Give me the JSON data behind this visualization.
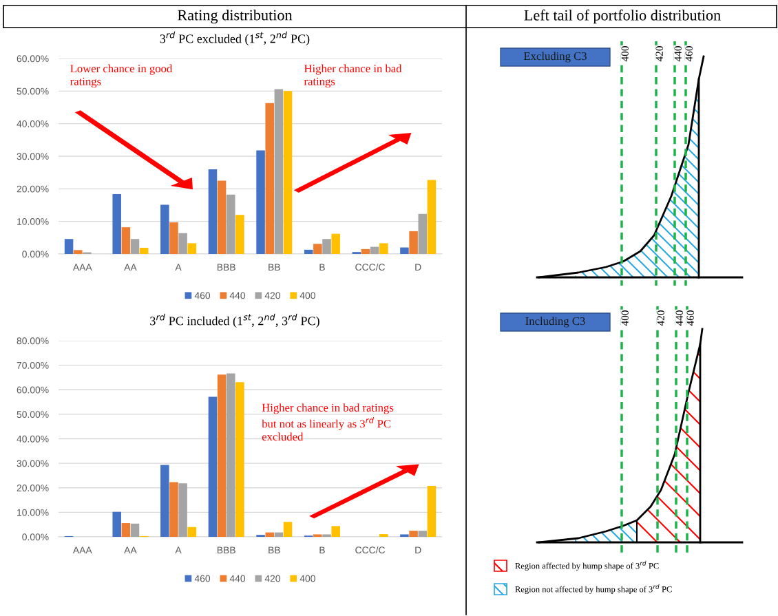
{
  "chart_data": [
    {
      "type": "bar",
      "title": "Rating distribution",
      "subtitle": "3$^{rd}$ PC excluded (1$^{st}$, 2$^{nd}$ PC)",
      "categories": [
        "AAA",
        "AA",
        "A",
        "BBB",
        "BB",
        "B",
        "CCC/C",
        "D"
      ],
      "series": [
        {
          "name": "460",
          "color": "#4472c4",
          "values": [
            4.6,
            18.4,
            15.1,
            26.0,
            31.8,
            1.3,
            0.6,
            2.0
          ]
        },
        {
          "name": "440",
          "color": "#ed7d31",
          "values": [
            1.2,
            8.2,
            9.7,
            22.5,
            46.3,
            3.1,
            1.5,
            7.0
          ]
        },
        {
          "name": "420",
          "color": "#a5a5a5",
          "values": [
            0.5,
            4.6,
            6.4,
            18.2,
            50.6,
            4.6,
            2.2,
            12.3
          ]
        },
        {
          "name": "400",
          "color": "#ffc000",
          "values": [
            0,
            1.9,
            3.3,
            12.0,
            50.0,
            6.2,
            3.3,
            22.7
          ]
        }
      ],
      "ylim": [
        0,
        60
      ],
      "yticks": [
        {
          "value": 0,
          "label": "0.00%"
        },
        {
          "value": 10,
          "label": "10.00%"
        },
        {
          "value": 20,
          "label": "20.00%"
        },
        {
          "value": 30,
          "label": "30.00%"
        },
        {
          "value": 40,
          "label": "40.00%"
        },
        {
          "value": 50,
          "label": "50.00%"
        },
        {
          "value": 60,
          "label": "60.00%"
        }
      ],
      "grid": "y",
      "legend": "bottom",
      "annotations": [
        "Lower chance in good\nratings",
        "Higher chance in bad\nratings"
      ]
    },
    {
      "type": "bar",
      "title": "3$^{rd}$ PC included (1$^{st}$, 2$^{nd}$, 3$^{rd}$ PC)",
      "categories": [
        "AAA",
        "AA",
        "A",
        "BBB",
        "BB",
        "B",
        "CCC/C",
        "D"
      ],
      "series": [
        {
          "name": "460",
          "color": "#4472c4",
          "values": [
            0.3,
            10.2,
            29.3,
            57.1,
            0.8,
            0.5,
            0,
            1.0
          ]
        },
        {
          "name": "440",
          "color": "#ed7d31",
          "values": [
            0,
            5.6,
            22.3,
            66.2,
            1.8,
            1.0,
            0,
            2.5
          ]
        },
        {
          "name": "420",
          "color": "#a5a5a5",
          "values": [
            0,
            5.4,
            21.8,
            66.7,
            1.8,
            1.0,
            0,
            2.5
          ]
        },
        {
          "name": "400",
          "color": "#ffc000",
          "values": [
            0,
            0.3,
            4.0,
            63.1,
            6.1,
            4.4,
            1.1,
            20.8
          ]
        }
      ],
      "ylim": [
        0,
        80
      ],
      "yticks": [
        {
          "value": 0,
          "label": "0.00%"
        },
        {
          "value": 10,
          "label": "10.00%"
        },
        {
          "value": 20,
          "label": "20.00%"
        },
        {
          "value": 30,
          "label": "30.00%"
        },
        {
          "value": 40,
          "label": "40.00%"
        },
        {
          "value": 50,
          "label": "50.00%"
        },
        {
          "value": 60,
          "label": "60.00%"
        },
        {
          "value": 70,
          "label": "70.00%"
        },
        {
          "value": 80,
          "label": "80.00%"
        }
      ],
      "grid": "y",
      "legend": "bottom",
      "annotations": [
        "Higher chance in bad ratings\nbut not as linearly as 3$^{rd}$ PC\nexcluded"
      ]
    },
    {
      "type": "other",
      "title": "Left tail of portfolio distribution",
      "annotations": [
        "Excluding C3",
        "400",
        "420",
        "440",
        "460"
      ]
    },
    {
      "type": "other",
      "annotations": [
        "Including C3",
        "400",
        "420",
        "440",
        "460",
        "Region affected by hump shape of 3$^{rd}$ PC",
        "Region not affected by hump shape of 3$^{rd}$ PC"
      ]
    }
  ]
}
